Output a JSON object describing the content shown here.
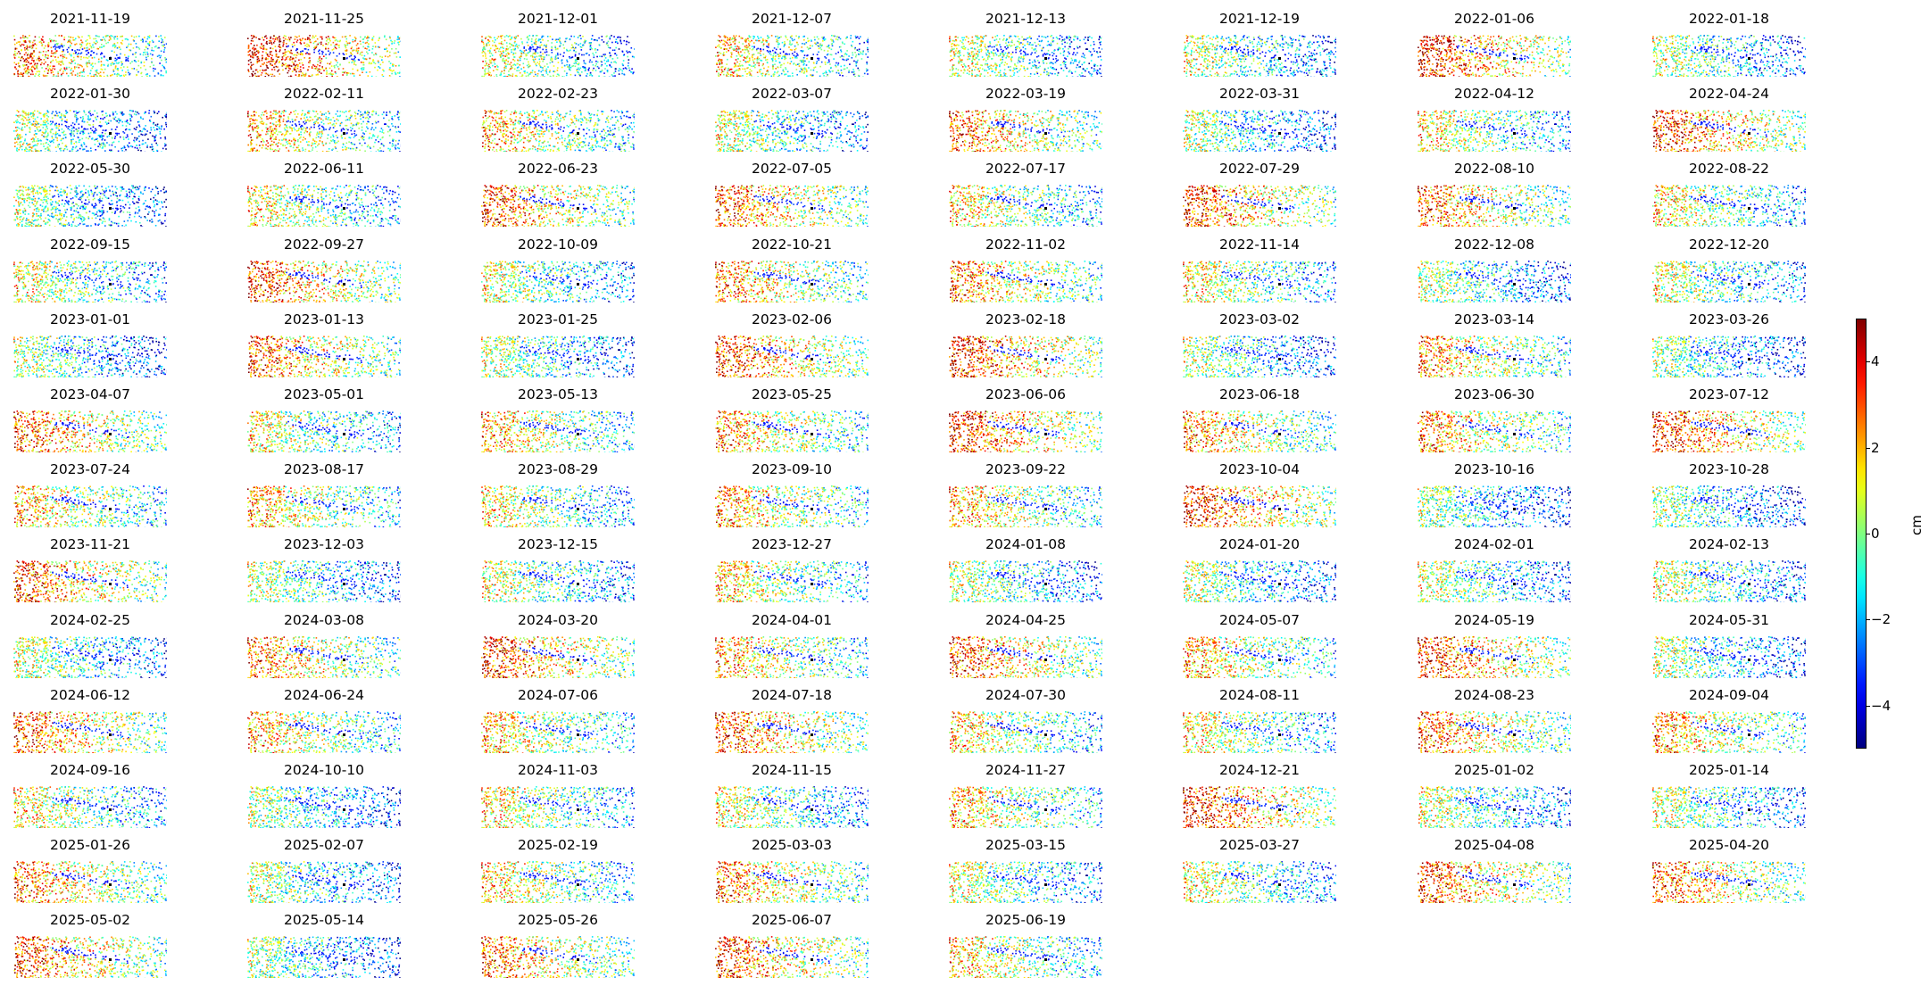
{
  "chart_data": {
    "type": "heatmap",
    "description_of_values": "",
    "colormap": "jet",
    "color_range": [
      -5,
      5
    ],
    "colorbar": {
      "label": "cm",
      "ticks": [
        -4,
        -2,
        0,
        2,
        4
      ],
      "tick_labels": [
        "−4",
        "−2",
        "0",
        "2",
        "4"
      ],
      "placement": "right"
    },
    "layout": {
      "rows": 13,
      "columns": 8
    },
    "panels": [
      "2021-11-19",
      "2021-11-25",
      "2021-12-01",
      "2021-12-07",
      "2021-12-13",
      "2021-12-19",
      "2022-01-06",
      "2022-01-18",
      "2022-01-30",
      "2022-02-11",
      "2022-02-23",
      "2022-03-07",
      "2022-03-19",
      "2022-03-31",
      "2022-04-12",
      "2022-04-24",
      "2022-05-30",
      "2022-06-11",
      "2022-06-23",
      "2022-07-05",
      "2022-07-17",
      "2022-07-29",
      "2022-08-10",
      "2022-08-22",
      "2022-09-15",
      "2022-09-27",
      "2022-10-09",
      "2022-10-21",
      "2022-11-02",
      "2022-11-14",
      "2022-12-08",
      "2022-12-20",
      "2023-01-01",
      "2023-01-13",
      "2023-01-25",
      "2023-02-06",
      "2023-02-18",
      "2023-03-02",
      "2023-03-14",
      "2023-03-26",
      "2023-04-07",
      "2023-05-01",
      "2023-05-13",
      "2023-05-25",
      "2023-06-06",
      "2023-06-18",
      "2023-06-30",
      "2023-07-12",
      "2023-07-24",
      "2023-08-17",
      "2023-08-29",
      "2023-09-10",
      "2023-09-22",
      "2023-10-04",
      "2023-10-16",
      "2023-10-28",
      "2023-11-21",
      "2023-12-03",
      "2023-12-15",
      "2023-12-27",
      "2024-01-08",
      "2024-01-20",
      "2024-02-01",
      "2024-02-13",
      "2024-02-25",
      "2024-03-08",
      "2024-03-20",
      "2024-04-01",
      "2024-04-25",
      "2024-05-07",
      "2024-05-19",
      "2024-05-31",
      "2024-06-12",
      "2024-06-24",
      "2024-07-06",
      "2024-07-18",
      "2024-07-30",
      "2024-08-11",
      "2024-08-23",
      "2024-09-04",
      "2024-09-16",
      "2024-10-10",
      "2024-11-03",
      "2024-11-15",
      "2024-11-27",
      "2024-12-21",
      "2025-01-02",
      "2025-01-14",
      "2025-01-26",
      "2025-02-07",
      "2025-02-19",
      "2025-03-03",
      "2025-03-15",
      "2025-03-27",
      "2025-04-08",
      "2025-04-20",
      "2025-05-02",
      "2025-05-14",
      "2025-05-26",
      "2025-06-07",
      "2025-06-19"
    ],
    "axes_visible": false,
    "grid": false
  }
}
